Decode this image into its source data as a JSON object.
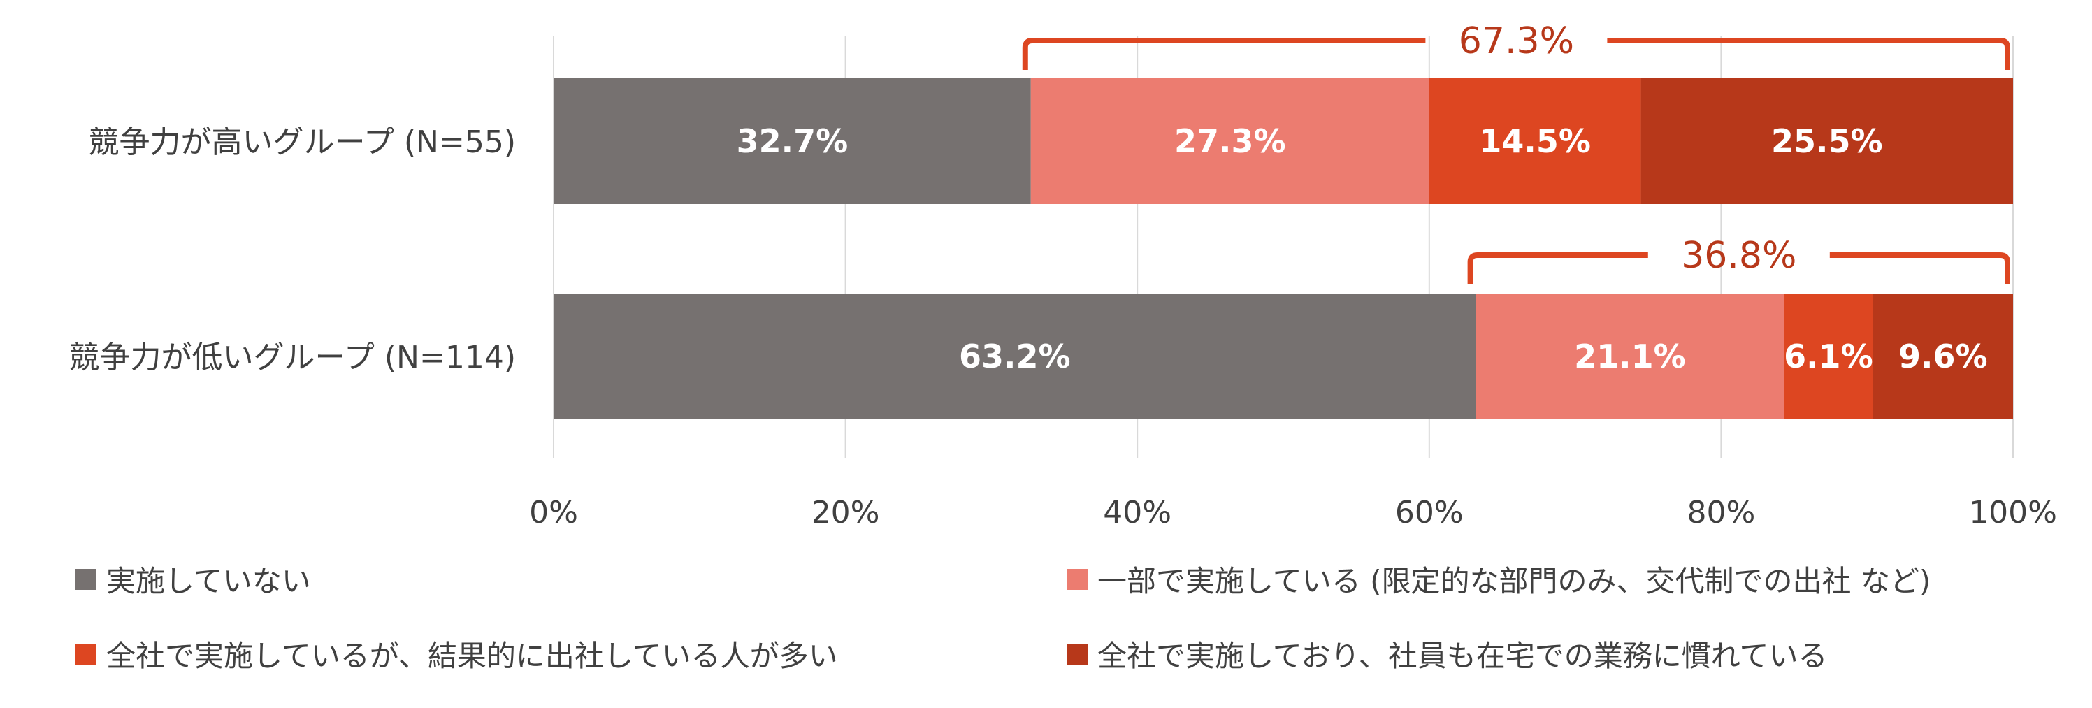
{
  "chart_data": {
    "type": "bar",
    "orientation": "horizontal",
    "stacked": true,
    "categories": [
      "競争力が高いグループ (N=55)",
      "競争力が低いグループ (N=114)"
    ],
    "series": [
      {
        "name": "実施していない",
        "values": [
          32.7,
          63.2
        ],
        "labels": [
          "32.7%",
          "63.2%"
        ],
        "color": "#767170"
      },
      {
        "name": "一部で実施している (限定的な部門のみ、交代制での出社 など)",
        "values": [
          27.3,
          21.1
        ],
        "labels": [
          "27.3%",
          "21.1%"
        ],
        "color": "#ec7c70"
      },
      {
        "name": "全社で実施しているが、結果的に出社している人が多い",
        "values": [
          14.5,
          6.1
        ],
        "labels": [
          "14.5%",
          "6.1%"
        ],
        "color": "#dd4621"
      },
      {
        "name": "全社で実施しており、社員も在宅での業務に慣れている",
        "values": [
          25.5,
          9.6
        ],
        "labels": [
          "25.5%",
          "9.6%"
        ],
        "color": "#b7381a"
      }
    ],
    "xlim": [
      0,
      100
    ],
    "ticks": [
      0,
      20,
      40,
      60,
      80,
      100
    ],
    "tick_labels": [
      "0%",
      "20%",
      "40%",
      "60%",
      "80%",
      "100%"
    ],
    "grid": true,
    "legend_position": "bottom",
    "annotations": [
      {
        "category_index": 0,
        "from_series_index": 1,
        "value": 67.3,
        "text": "67.3%"
      },
      {
        "category_index": 1,
        "from_series_index": 1,
        "value": 36.8,
        "text": "36.8%"
      }
    ],
    "colors": {
      "bracket": "#dd4621",
      "bracket_text": "#b7381a",
      "grid": "#d9d9d9",
      "text": "#404040"
    }
  }
}
